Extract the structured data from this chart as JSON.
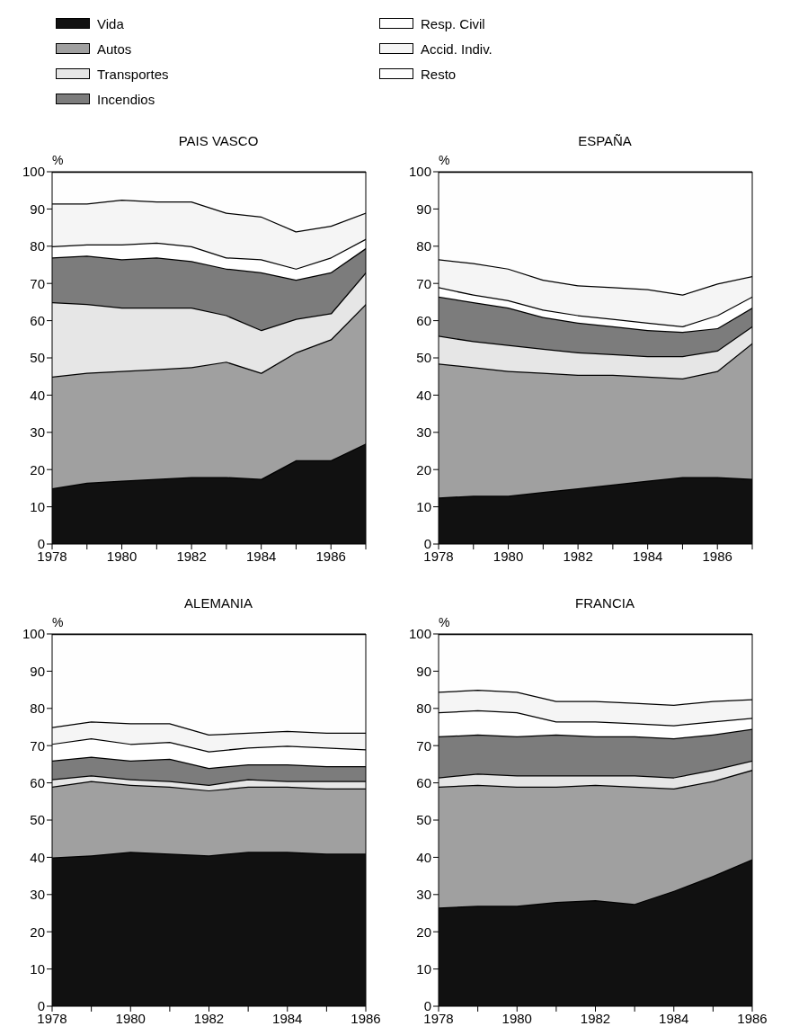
{
  "chart_data": [
    {
      "type": "area",
      "title": "PAIS VASCO",
      "ylabel": "%",
      "stacked": true,
      "legend": "top",
      "x": [
        1978,
        1979,
        1980,
        1981,
        1982,
        1983,
        1984,
        1985,
        1986,
        1987
      ],
      "xlim": [
        1978,
        1987
      ],
      "xticks": [
        1978,
        {
          "value": 1979,
          "label": null
        },
        1980,
        {
          "value": 1981,
          "label": null
        },
        1982,
        {
          "value": 1983,
          "label": null
        },
        1984,
        {
          "value": 1985,
          "label": null
        },
        1986,
        {
          "value": 1987,
          "label": null
        }
      ],
      "ylim": [
        0,
        100
      ],
      "yticks": [
        0,
        10,
        20,
        30,
        40,
        50,
        60,
        70,
        80,
        90,
        100
      ],
      "series": [
        {
          "name": "Vida",
          "color": "#111111",
          "values": [
            15,
            16.5,
            17,
            17.5,
            18,
            18,
            17.5,
            22.5,
            22.5,
            27
          ]
        },
        {
          "name": "Autos",
          "color": "#a0a0a0",
          "values": [
            30,
            29.5,
            29.5,
            29.5,
            29.5,
            31,
            28.5,
            29,
            32.5,
            37.5
          ]
        },
        {
          "name": "Transportes",
          "color": "#e6e6e6",
          "values": [
            20,
            18.5,
            17,
            16.5,
            16,
            12.5,
            11.5,
            9,
            7,
            8.5
          ]
        },
        {
          "name": "Incendios",
          "color": "#7c7c7c",
          "values": [
            12,
            13,
            13,
            13.5,
            12.5,
            12.5,
            15.5,
            10.5,
            11,
            6.5
          ]
        },
        {
          "name": "Resp. Civil",
          "color": "#ffffff",
          "values": [
            3,
            3,
            4,
            4,
            4,
            3,
            3.5,
            3,
            4,
            2.5
          ]
        },
        {
          "name": "Accid. Indiv.",
          "color": "#f5f5f5",
          "values": [
            11.5,
            11,
            12,
            11,
            12,
            12,
            11.5,
            10,
            8.5,
            7
          ]
        },
        {
          "name": "Resto",
          "color": "#fefefe",
          "values": [
            8.5,
            8.5,
            7.5,
            8,
            8,
            11,
            12,
            16,
            14.5,
            11
          ]
        }
      ]
    },
    {
      "type": "area",
      "title": "ESPAÑA",
      "ylabel": "%",
      "stacked": true,
      "x": [
        1978,
        1979,
        1980,
        1981,
        1982,
        1983,
        1984,
        1985,
        1986,
        1987
      ],
      "xlim": [
        1978,
        1987
      ],
      "xticks": [
        1978,
        {
          "value": 1979,
          "label": null
        },
        1980,
        {
          "value": 1981,
          "label": null
        },
        1982,
        {
          "value": 1983,
          "label": null
        },
        1984,
        {
          "value": 1985,
          "label": null
        },
        1986,
        {
          "value": 1987,
          "label": null
        }
      ],
      "ylim": [
        0,
        100
      ],
      "yticks": [
        0,
        10,
        20,
        30,
        40,
        50,
        60,
        70,
        80,
        90,
        100
      ],
      "series": [
        {
          "color": "#111111",
          "values": [
            12.5,
            13,
            13,
            14,
            15,
            16,
            17,
            18,
            18,
            17.5
          ]
        },
        {
          "color": "#a0a0a0",
          "values": [
            36,
            34.5,
            33.5,
            32,
            30.5,
            29.5,
            28,
            26.5,
            28.5,
            36.5
          ]
        },
        {
          "color": "#e6e6e6",
          "values": [
            7.5,
            7,
            7,
            6.5,
            6,
            5.5,
            5.5,
            6,
            5.5,
            4.5
          ]
        },
        {
          "color": "#7c7c7c",
          "values": [
            10.5,
            10.5,
            10,
            8.5,
            8,
            7.5,
            7,
            6.5,
            6,
            5
          ]
        },
        {
          "color": "#ffffff",
          "values": [
            2.5,
            2,
            2,
            2,
            2,
            2,
            2,
            1.5,
            3.5,
            3
          ]
        },
        {
          "color": "#f5f5f5",
          "values": [
            7.5,
            8.5,
            8.5,
            8,
            8,
            8.5,
            9,
            8.5,
            8.5,
            5.5
          ]
        },
        {
          "color": "#fefefe",
          "values": [
            23.5,
            24.5,
            26,
            29,
            30.5,
            31,
            31.5,
            33,
            30,
            28
          ]
        }
      ]
    },
    {
      "type": "area",
      "title": "ALEMANIA",
      "ylabel": "%",
      "stacked": true,
      "x": [
        1978,
        1979,
        1980,
        1981,
        1982,
        1983,
        1984,
        1985,
        1986
      ],
      "xlim": [
        1978,
        1986
      ],
      "xticks": [
        1978,
        {
          "value": 1979,
          "label": null
        },
        1980,
        {
          "value": 1981,
          "label": null
        },
        1982,
        {
          "value": 1983,
          "label": null
        },
        1984,
        {
          "value": 1985,
          "label": null
        },
        1986
      ],
      "ylim": [
        0,
        100
      ],
      "yticks": [
        0,
        10,
        20,
        30,
        40,
        50,
        60,
        70,
        80,
        90,
        100
      ],
      "series": [
        {
          "color": "#111111",
          "values": [
            40,
            40.5,
            41.5,
            41,
            40.5,
            41.5,
            41.5,
            41,
            41
          ]
        },
        {
          "color": "#a0a0a0",
          "values": [
            19,
            20,
            18,
            18,
            17.5,
            17.5,
            17.5,
            17.5,
            17.5
          ]
        },
        {
          "color": "#e6e6e6",
          "values": [
            2,
            1.5,
            1.5,
            1.5,
            1.5,
            2,
            1.5,
            2,
            2
          ]
        },
        {
          "color": "#7c7c7c",
          "values": [
            5,
            5,
            5,
            6,
            4.5,
            4,
            4.5,
            4,
            4
          ]
        },
        {
          "color": "#ffffff",
          "values": [
            4.5,
            5,
            4.5,
            4.5,
            4.5,
            4.5,
            5,
            5,
            4.5
          ]
        },
        {
          "color": "#f5f5f5",
          "values": [
            4.5,
            4.5,
            5.5,
            5,
            4.5,
            4,
            4,
            4,
            4.5
          ]
        },
        {
          "color": "#fefefe",
          "values": [
            25,
            23.5,
            24,
            24,
            27,
            26.5,
            26,
            26.5,
            26.5
          ]
        }
      ]
    },
    {
      "type": "area",
      "title": "FRANCIA",
      "ylabel": "%",
      "stacked": true,
      "x": [
        1978,
        1979,
        1980,
        1981,
        1982,
        1983,
        1984,
        1985,
        1986
      ],
      "xlim": [
        1978,
        1986
      ],
      "xticks": [
        1978,
        {
          "value": 1979,
          "label": null
        },
        1980,
        {
          "value": 1981,
          "label": null
        },
        1982,
        {
          "value": 1983,
          "label": null
        },
        1984,
        {
          "value": 1985,
          "label": null
        },
        1986
      ],
      "ylim": [
        0,
        100
      ],
      "yticks": [
        0,
        10,
        20,
        30,
        40,
        50,
        60,
        70,
        80,
        90,
        100
      ],
      "series": [
        {
          "color": "#111111",
          "values": [
            26.5,
            27,
            27,
            28,
            28.5,
            27.5,
            31,
            35,
            39.5
          ]
        },
        {
          "color": "#a0a0a0",
          "values": [
            32.5,
            32.5,
            32,
            31,
            31,
            31.5,
            27.5,
            25.5,
            24
          ]
        },
        {
          "color": "#e6e6e6",
          "values": [
            2.5,
            3,
            3,
            3,
            2.5,
            3,
            3,
            3,
            2.5
          ]
        },
        {
          "color": "#7c7c7c",
          "values": [
            11,
            10.5,
            10.5,
            11,
            10.5,
            10.5,
            10.5,
            9.5,
            8.5
          ]
        },
        {
          "color": "#ffffff",
          "values": [
            6.5,
            6.5,
            6.5,
            3.5,
            4,
            3.5,
            3.5,
            3.5,
            3
          ]
        },
        {
          "color": "#f5f5f5",
          "values": [
            5.5,
            5.5,
            5.5,
            5.5,
            5.5,
            5.5,
            5.5,
            5.5,
            5
          ]
        },
        {
          "color": "#fefefe",
          "values": [
            15.5,
            15,
            15.5,
            18,
            18,
            18.5,
            19,
            18,
            17.5
          ]
        }
      ]
    }
  ]
}
